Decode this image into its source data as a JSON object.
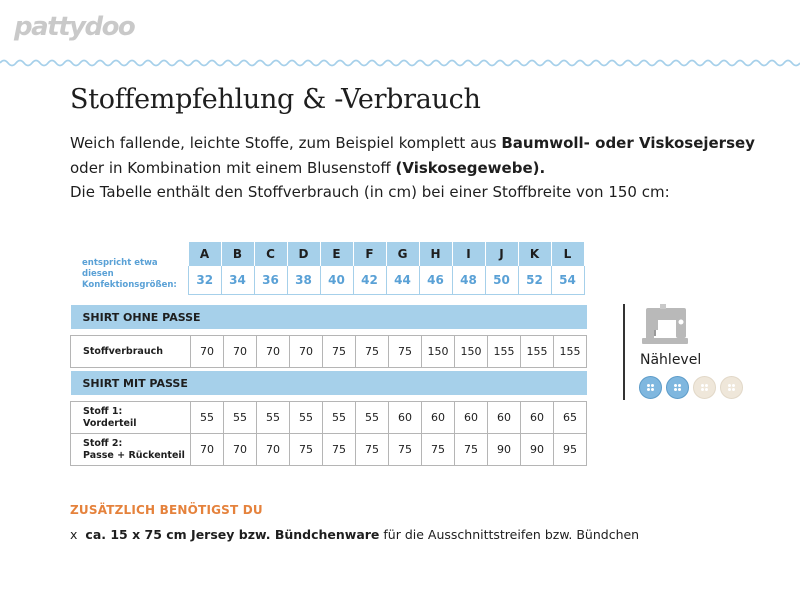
{
  "brand": {
    "logo_text": "pattydoo"
  },
  "heading": {
    "title": "Stoffempfehlung & -Verbrauch"
  },
  "intro": {
    "p1_a": "Weich fallende, leichte Stoffe, zum Beispiel komplett aus ",
    "p1_b": "Baumwoll- oder Viskosejersey",
    "p1_c": " oder in Kombination mit einem Blusenstoff ",
    "p1_d": "(Viskosegewebe).",
    "p2": "Die Tabelle enthält den Stoffverbrauch (in cm) bei einer Stoffbreite von 150 cm:"
  },
  "size_table": {
    "label": "entspricht etwa diesen Konfektionsgrößen:",
    "letters": [
      "A",
      "B",
      "C",
      "D",
      "E",
      "F",
      "G",
      "H",
      "I",
      "J",
      "K",
      "L"
    ],
    "sizes": [
      "32",
      "34",
      "36",
      "38",
      "40",
      "42",
      "44",
      "46",
      "48",
      "50",
      "52",
      "54"
    ]
  },
  "sections": [
    {
      "title": "SHIRT OHNE PASSE",
      "rows": [
        {
          "label1": "Stoffverbrauch",
          "label2": "",
          "values": [
            "70",
            "70",
            "70",
            "70",
            "75",
            "75",
            "75",
            "150",
            "150",
            "155",
            "155",
            "155"
          ]
        }
      ]
    },
    {
      "title": "SHIRT MIT PASSE",
      "rows": [
        {
          "label1": "Stoff 1:",
          "label2": "Vorderteil",
          "values": [
            "55",
            "55",
            "55",
            "55",
            "55",
            "55",
            "60",
            "60",
            "60",
            "60",
            "60",
            "65"
          ]
        },
        {
          "label1": "Stoff 2:",
          "label2": "Passe + Rückenteil",
          "values": [
            "70",
            "70",
            "70",
            "75",
            "75",
            "75",
            "75",
            "75",
            "75",
            "90",
            "90",
            "95"
          ]
        }
      ]
    }
  ],
  "sewing_level": {
    "label": "Nählevel",
    "icon": "sewing-machine-icon",
    "level": 2,
    "max": 4,
    "colors": {
      "active": "#7fb7df",
      "inactive": "#efe7da"
    }
  },
  "extras": {
    "heading": "ZUSÄTZLICH BENÖTIGST DU",
    "bullet": "x",
    "item_bold": "ca. 15 x 75 cm Jersey bzw. Bündchenware",
    "item_rest": " für die Ausschnittstreifen bzw. Bündchen"
  },
  "colors": {
    "table_blue": "#a6d0ea",
    "label_blue": "#5aa1d6",
    "accent_orange": "#e5823c",
    "logo_gray": "#c9c9c9"
  }
}
